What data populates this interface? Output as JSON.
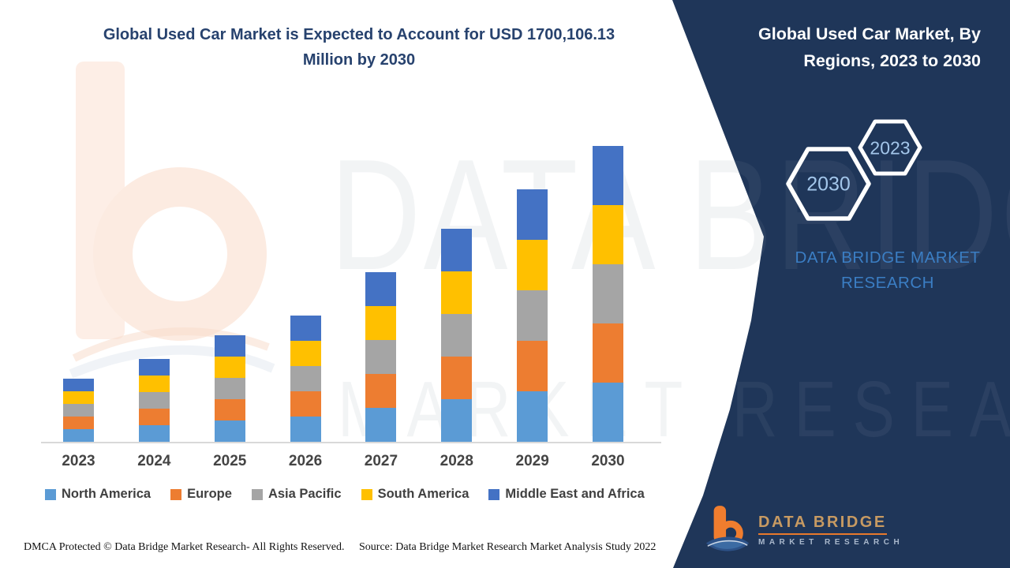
{
  "page": {
    "title_line1": "Global Used Car Market is Expected to Account for USD 1700,106.13",
    "title_line2": "Million by 2030",
    "title_color": "#27426e",
    "background": "#ffffff"
  },
  "side_panel": {
    "background": "#1f3659",
    "title_line1": "Global Used Car Market, By",
    "title_line2": "Regions, 2023 to 2030",
    "title_color": "#ffffff",
    "hexagon_large_label": "2030",
    "hexagon_small_label": "2023",
    "hexagon_label_color": "#a3c6ea",
    "brand_line1": "DATA BRIDGE MARKET",
    "brand_line2": "RESEARCH",
    "brand_color": "#3b7ec4"
  },
  "chart_data": {
    "type": "bar",
    "stacked": true,
    "title": "Global Used Car Market, By Regions, 2023 to 2030",
    "categories": [
      "2023",
      "2024",
      "2025",
      "2026",
      "2027",
      "2028",
      "2029",
      "2030"
    ],
    "series": [
      {
        "name": "North America",
        "color": "#5B9BD5",
        "values": [
          16,
          21,
          27,
          32,
          43,
          54,
          64,
          75
        ]
      },
      {
        "name": "Europe",
        "color": "#ED7D31",
        "values": [
          16,
          21,
          27,
          32,
          43,
          54,
          64,
          75
        ]
      },
      {
        "name": "Asia Pacific",
        "color": "#A5A5A5",
        "values": [
          16,
          21,
          27,
          32,
          43,
          54,
          64,
          75
        ]
      },
      {
        "name": "South America",
        "color": "#FFC000",
        "values": [
          16,
          21,
          27,
          32,
          43,
          54,
          64,
          75
        ]
      },
      {
        "name": "Middle East and Africa",
        "color": "#4472C4",
        "values": [
          16,
          21,
          27,
          32,
          43,
          54,
          64,
          75
        ]
      }
    ],
    "stack_totals": [
      80,
      105,
      135,
      160,
      215,
      270,
      320,
      375
    ],
    "units": "relative height units (no numeric value axis is shown in the figure)",
    "value_axis_visible": false,
    "gridlines": false,
    "legend_position": "bottom",
    "xlabel": "",
    "ylabel": ""
  },
  "footer": {
    "dmca_text": "DMCA Protected © Data Bridge Market Research- All Rights Reserved.",
    "source_text": "Source: Data Bridge Market Research Market Analysis Study 2022"
  },
  "logo": {
    "name": "DATA BRIDGE",
    "subtitle": "MARKET RESEARCH"
  },
  "watermark": {
    "line1": "DATA BRIDGE",
    "line2": "MARKET RESEARCH"
  }
}
